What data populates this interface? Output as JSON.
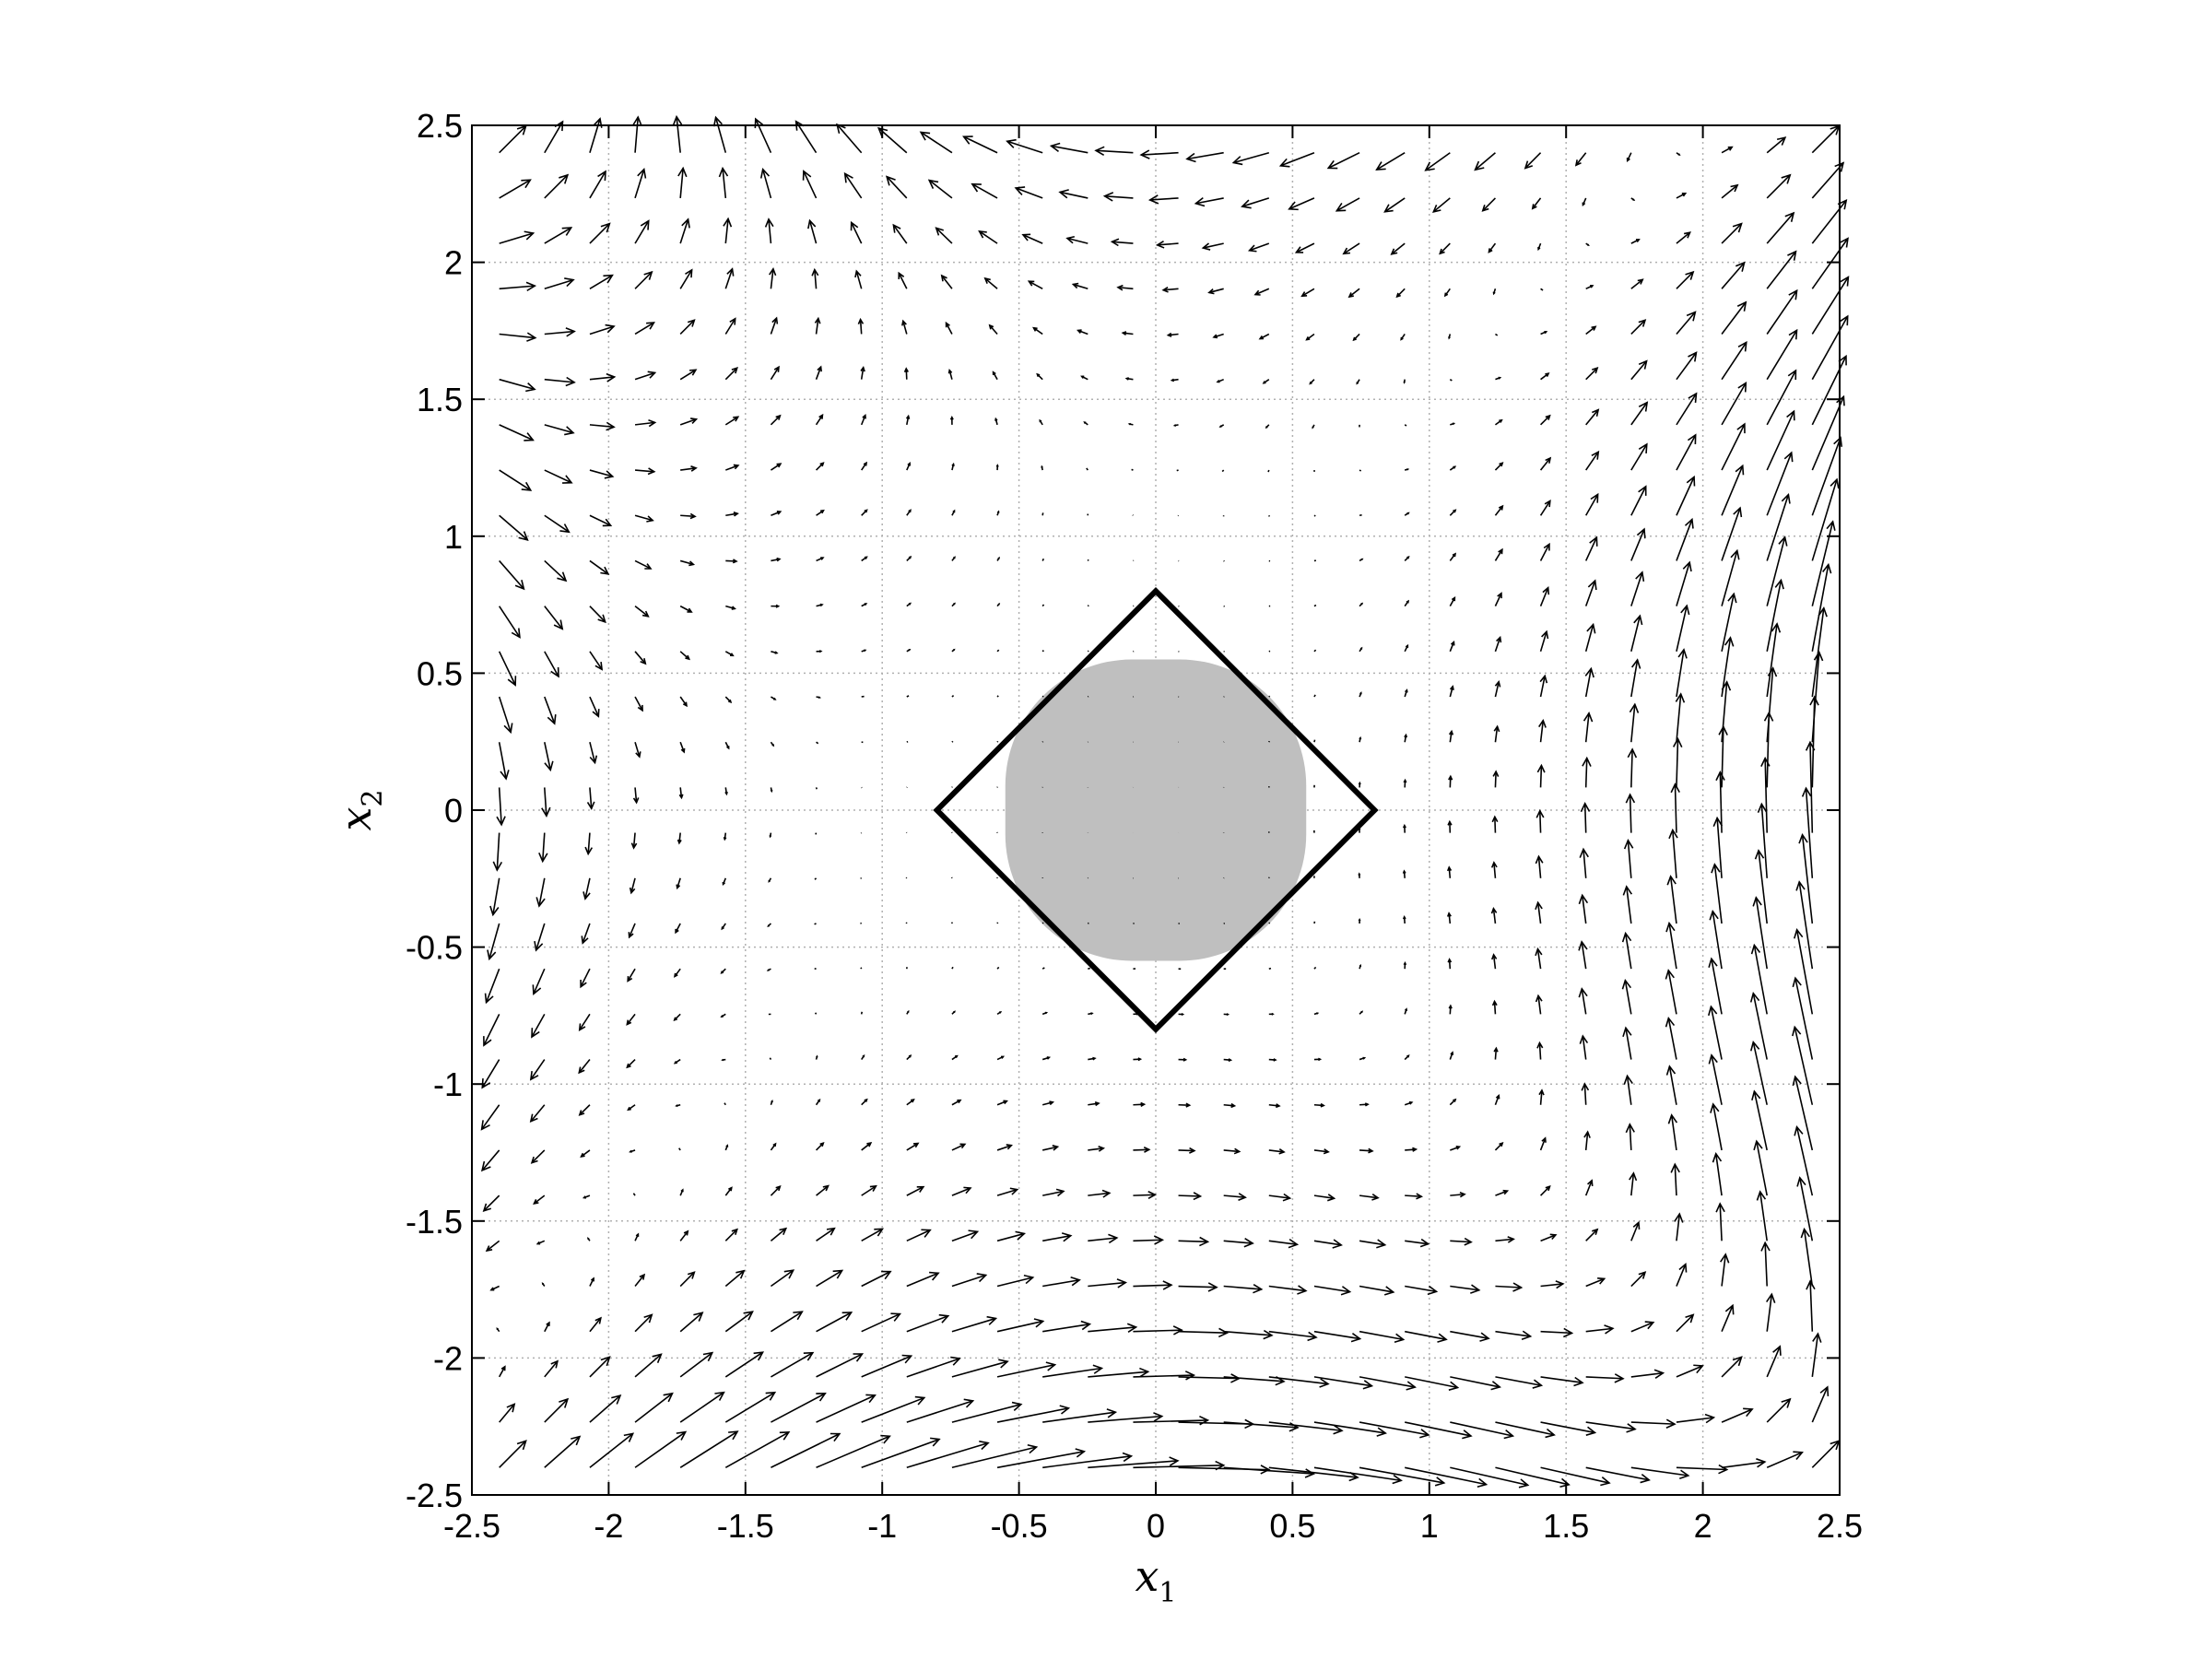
{
  "chart_data": {
    "type": "vector-field",
    "title": "",
    "xlabel": "x",
    "xlabel_sub": "1",
    "ylabel": "x",
    "ylabel_sub": "2",
    "xlim": [
      -2.5,
      2.5
    ],
    "ylim": [
      -2.5,
      2.5
    ],
    "xticks": [
      -2.5,
      -2,
      -1.5,
      -1,
      -0.5,
      0,
      0.5,
      1,
      1.5,
      2,
      2.5
    ],
    "yticks": [
      -2.5,
      -2,
      -1.5,
      -1,
      -0.5,
      0,
      0.5,
      1,
      1.5,
      2,
      2.5
    ],
    "xtick_labels": [
      "-2.5",
      "-2",
      "-1.5",
      "-1",
      "-0.5",
      "0",
      "0.5",
      "1",
      "1.5",
      "2",
      "2.5"
    ],
    "ytick_labels": [
      "-2.5",
      "-2",
      "-1.5",
      "-1",
      "-0.5",
      "0",
      "0.5",
      "1",
      "1.5",
      "2",
      "2.5"
    ],
    "grid": true,
    "field_grid": {
      "x_from": -2.4,
      "x_to": 2.4,
      "y_from": -2.4,
      "y_to": 2.4,
      "count": 30
    },
    "field": {
      "u": "x2*(x1^2 - x2^2 + x2)",
      "v": "x1*(x1^2 - x2^2 + x1)"
    },
    "shaded_region": {
      "shape": "rounded-square",
      "x_range": [
        -0.55,
        0.55
      ],
      "y_range": [
        -0.55,
        0.55
      ],
      "color": "#bfbfbf"
    },
    "polygon": {
      "vertices": [
        [
          0,
          0.8
        ],
        [
          0.8,
          0
        ],
        [
          0,
          -0.8
        ],
        [
          -0.8,
          0
        ]
      ],
      "color": "#000000"
    },
    "arrow_color": "#000000",
    "grid_color": "#b0b0b0"
  }
}
